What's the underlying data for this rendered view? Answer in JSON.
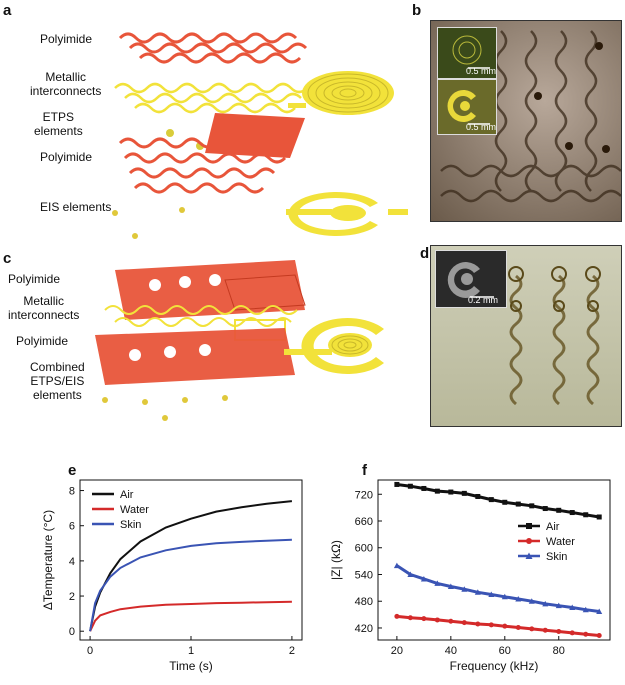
{
  "panels": {
    "a": {
      "letter": "a",
      "labels": [
        "Polyimide",
        "Metallic\ninterconnects",
        "ETPS\nelements",
        "Polyimide",
        "EIS elements"
      ]
    },
    "b": {
      "letter": "b",
      "scalebar_top": "0.5 mm",
      "scalebar_bottom": "0.5 mm"
    },
    "c": {
      "letter": "c",
      "labels": [
        "Polyimide",
        "Metallic\ninterconnects",
        "Polyimide",
        "Combined\nETPS/EIS\nelements"
      ]
    },
    "d": {
      "letter": "d",
      "scalebar": "0.2 mm"
    },
    "e": {
      "letter": "e"
    },
    "f": {
      "letter": "f"
    }
  },
  "colors": {
    "polyimide": "#e8553a",
    "metal": "#f2e23a",
    "air": "#111111",
    "water": "#d42a2a",
    "skin": "#3a54b4"
  },
  "chart_data": [
    {
      "type": "line",
      "panel": "e",
      "xlabel": "Time (s)",
      "ylabel": "ΔTemperature (°C)",
      "xlim": [
        -0.1,
        2.1
      ],
      "ylim": [
        -0.5,
        8.6
      ],
      "xticks": [
        0,
        1,
        2
      ],
      "yticks": [
        0,
        2,
        4,
        6,
        8
      ],
      "legend_position": "top-left",
      "series": [
        {
          "name": "Air",
          "color": "#111111",
          "x": [
            0,
            0.05,
            0.1,
            0.2,
            0.3,
            0.5,
            0.75,
            1.0,
            1.25,
            1.5,
            1.75,
            2.0
          ],
          "y": [
            0,
            1.4,
            2.2,
            3.3,
            4.1,
            5.1,
            5.9,
            6.4,
            6.8,
            7.05,
            7.25,
            7.4
          ]
        },
        {
          "name": "Water",
          "color": "#d42a2a",
          "x": [
            0,
            0.05,
            0.1,
            0.2,
            0.3,
            0.5,
            0.75,
            1.0,
            1.25,
            1.5,
            1.75,
            2.0
          ],
          "y": [
            0,
            0.6,
            0.9,
            1.1,
            1.25,
            1.4,
            1.5,
            1.55,
            1.6,
            1.62,
            1.65,
            1.68
          ]
        },
        {
          "name": "Skin",
          "color": "#3a54b4",
          "x": [
            0,
            0.05,
            0.1,
            0.2,
            0.3,
            0.5,
            0.75,
            1.0,
            1.25,
            1.5,
            1.75,
            2.0
          ],
          "y": [
            0,
            1.6,
            2.3,
            3.1,
            3.6,
            4.2,
            4.6,
            4.85,
            5.0,
            5.08,
            5.15,
            5.2
          ]
        }
      ]
    },
    {
      "type": "line",
      "panel": "f",
      "xlabel": "Frequency (kHz)",
      "ylabel": "|Z| (kΩ)",
      "xlim": [
        13,
        99
      ],
      "ylim": [
        393,
        752
      ],
      "xticks": [
        20,
        40,
        60,
        80
      ],
      "yticks": [
        420,
        480,
        540,
        600,
        660,
        720
      ],
      "legend_position": "center-right",
      "series": [
        {
          "name": "Air",
          "color": "#111111",
          "marker": "square",
          "x": [
            20,
            25,
            30,
            35,
            40,
            45,
            50,
            55,
            60,
            65,
            70,
            75,
            80,
            85,
            90,
            95
          ],
          "y": [
            742,
            738,
            733,
            727,
            725,
            722,
            715,
            708,
            702,
            698,
            694,
            688,
            684,
            679,
            674,
            669
          ]
        },
        {
          "name": "Water",
          "color": "#d42a2a",
          "marker": "circle",
          "x": [
            20,
            25,
            30,
            35,
            40,
            45,
            50,
            55,
            60,
            65,
            70,
            75,
            80,
            85,
            90,
            95
          ],
          "y": [
            446,
            443,
            441,
            438,
            435,
            432,
            429,
            427,
            424,
            421,
            418,
            415,
            412,
            409,
            406,
            403
          ]
        },
        {
          "name": "Skin",
          "color": "#3a54b4",
          "marker": "triangle",
          "x": [
            20,
            25,
            30,
            35,
            40,
            45,
            50,
            55,
            60,
            65,
            70,
            75,
            80,
            85,
            90,
            95
          ],
          "y": [
            560,
            540,
            530,
            520,
            513,
            507,
            500,
            495,
            490,
            485,
            480,
            474,
            470,
            466,
            461,
            457
          ]
        }
      ]
    }
  ]
}
